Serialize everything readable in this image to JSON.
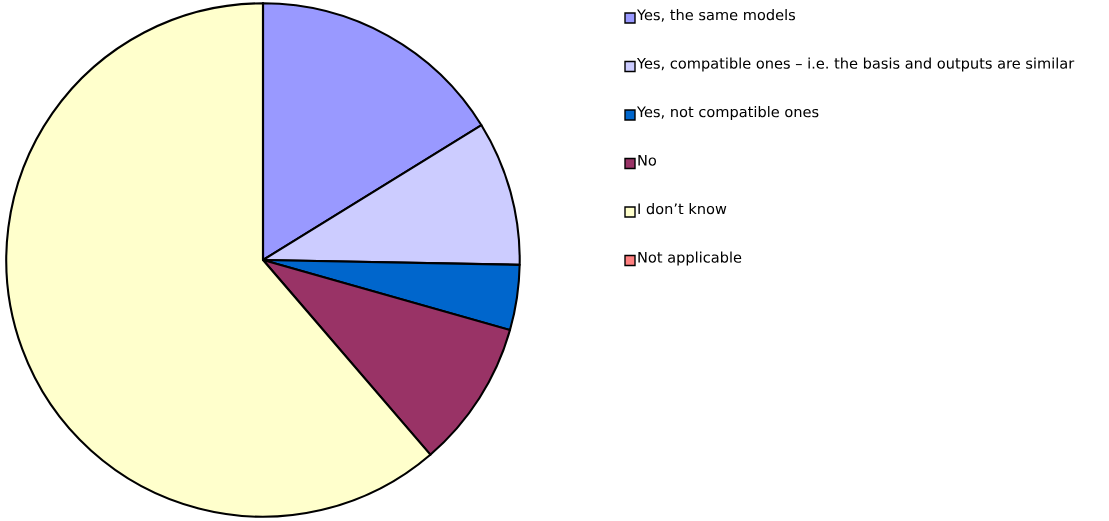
{
  "chart_data": {
    "type": "pie",
    "categories": [
      "Yes, the same models",
      "Yes, compatible ones – i.e. the basis and outputs are similar",
      "Yes, not compatible ones",
      "No",
      "I don’t know",
      "Not applicable"
    ],
    "values": [
      16.2,
      9.1,
      4.1,
      9.3,
      61.3,
      0
    ],
    "colors": [
      "#9999ff",
      "#ccccff",
      "#0066cc",
      "#993366",
      "#ffffcc",
      "#ff8080"
    ],
    "legend": "right"
  }
}
